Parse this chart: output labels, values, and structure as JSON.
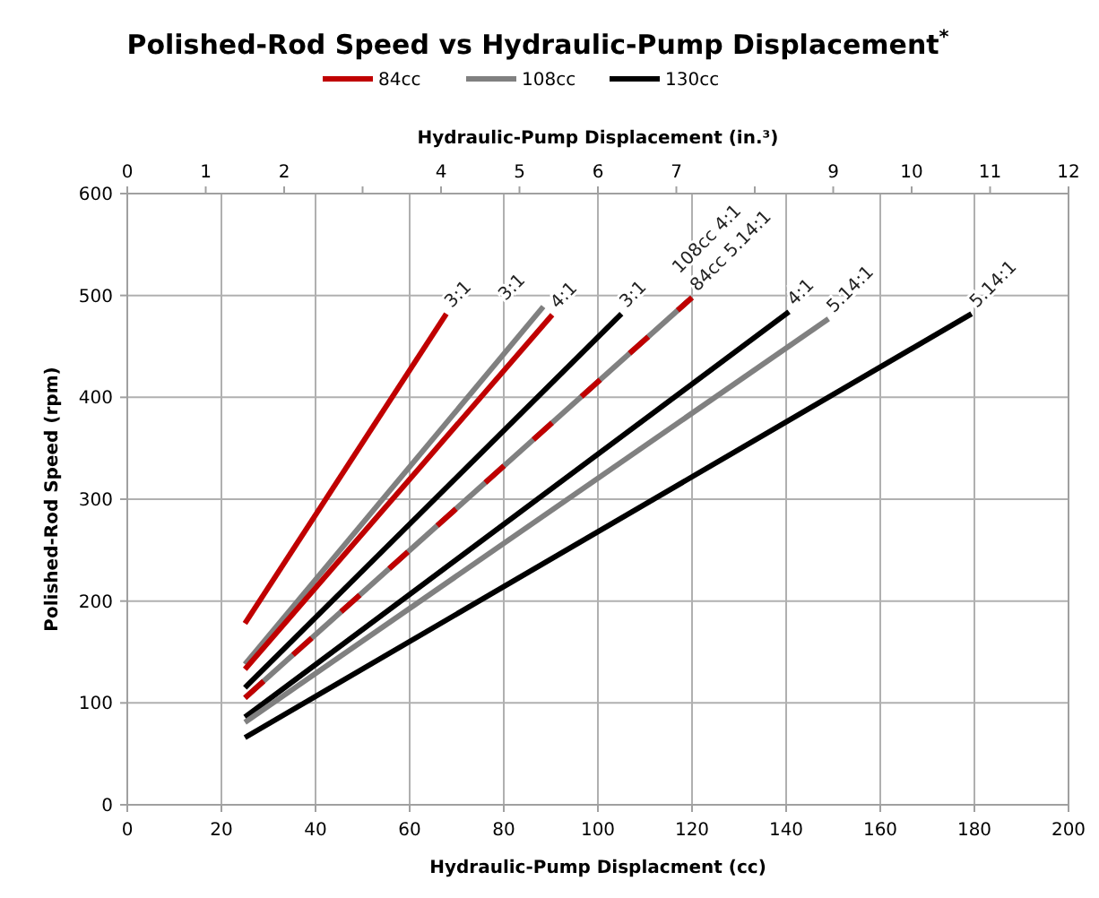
{
  "chart_data": {
    "type": "line",
    "title": "Polished-Rod Speed vs Hydraulic-Pump Displacement$^{*}$",
    "xlabel": "Hydraulic-Pump Displacment (cc)",
    "ylabel": "Polished-Rod Speed (rpm)",
    "x2label": "Hydraulic-Pump Displacement (in.³)",
    "xlim": [
      0,
      200
    ],
    "xticks": [
      0,
      20,
      40,
      60,
      80,
      100,
      120,
      140,
      160,
      180,
      200
    ],
    "x2lim": [
      0,
      12
    ],
    "x2ticks": [
      0,
      1,
      2,
      {
        "value": 3,
        "label": null
      },
      4,
      5,
      6,
      7,
      {
        "value": 8,
        "label": null
      },
      9,
      10,
      11,
      12
    ],
    "ylim": [
      0,
      600
    ],
    "yticks": [
      0,
      100,
      200,
      300,
      400,
      500,
      600
    ],
    "grid": true,
    "legend": "top",
    "line_style": "solid",
    "marker": "none",
    "series": [
      {
        "name": "84cc",
        "color": "#c00000",
        "x": [
          25,
          67.8
        ],
        "values": [
          178,
          482
        ]
      },
      {
        "name": "108cc",
        "color": "#808080",
        "x": [
          25,
          88.4
        ],
        "values": [
          138,
          489
        ]
      },
      {
        "name": "130cc",
        "color": "#000000",
        "x": [
          25,
          105
        ],
        "values": [
          115,
          482
        ]
      },
      {
        "color": "#c00000",
        "x": [
          25,
          90.3
        ],
        "values": [
          133,
          481
        ]
      },
      {
        "color": "#808080",
        "x": [
          25,
          120
        ],
        "values": [
          105,
          498
        ]
      },
      {
        "color": "#c00000",
        "x": [
          25,
          120
        ],
        "values": [
          105,
          498
        ],
        "line_style": "dashed"
      },
      {
        "color": "#000000",
        "x": [
          25,
          140.6
        ],
        "values": [
          86,
          484
        ]
      },
      {
        "color": "#808080",
        "x": [
          25,
          149
        ],
        "values": [
          81,
          477
        ]
      },
      {
        "color": "#000000",
        "x": [
          25,
          179.4
        ],
        "values": [
          66,
          482
        ]
      }
    ],
    "annotations": [
      {
        "text": "3:1",
        "x": 67.8,
        "y": 482
      },
      {
        "text": "3:1",
        "x": 88.4,
        "y": 489
      },
      {
        "text": "4:1",
        "x": 90.3,
        "y": 481
      },
      {
        "text": "3:1",
        "x": 105,
        "y": 482
      },
      {
        "text": "84cc 5.14:1",
        "x": 120,
        "y": 498
      },
      {
        "text": "108cc 4:1",
        "x": 120,
        "y": 498
      },
      {
        "text": "4:1",
        "x": 140.6,
        "y": 484
      },
      {
        "text": "5.14:1",
        "x": 149,
        "y": 477
      },
      {
        "text": "5.14:1",
        "x": 179.4,
        "y": 482
      }
    ]
  }
}
